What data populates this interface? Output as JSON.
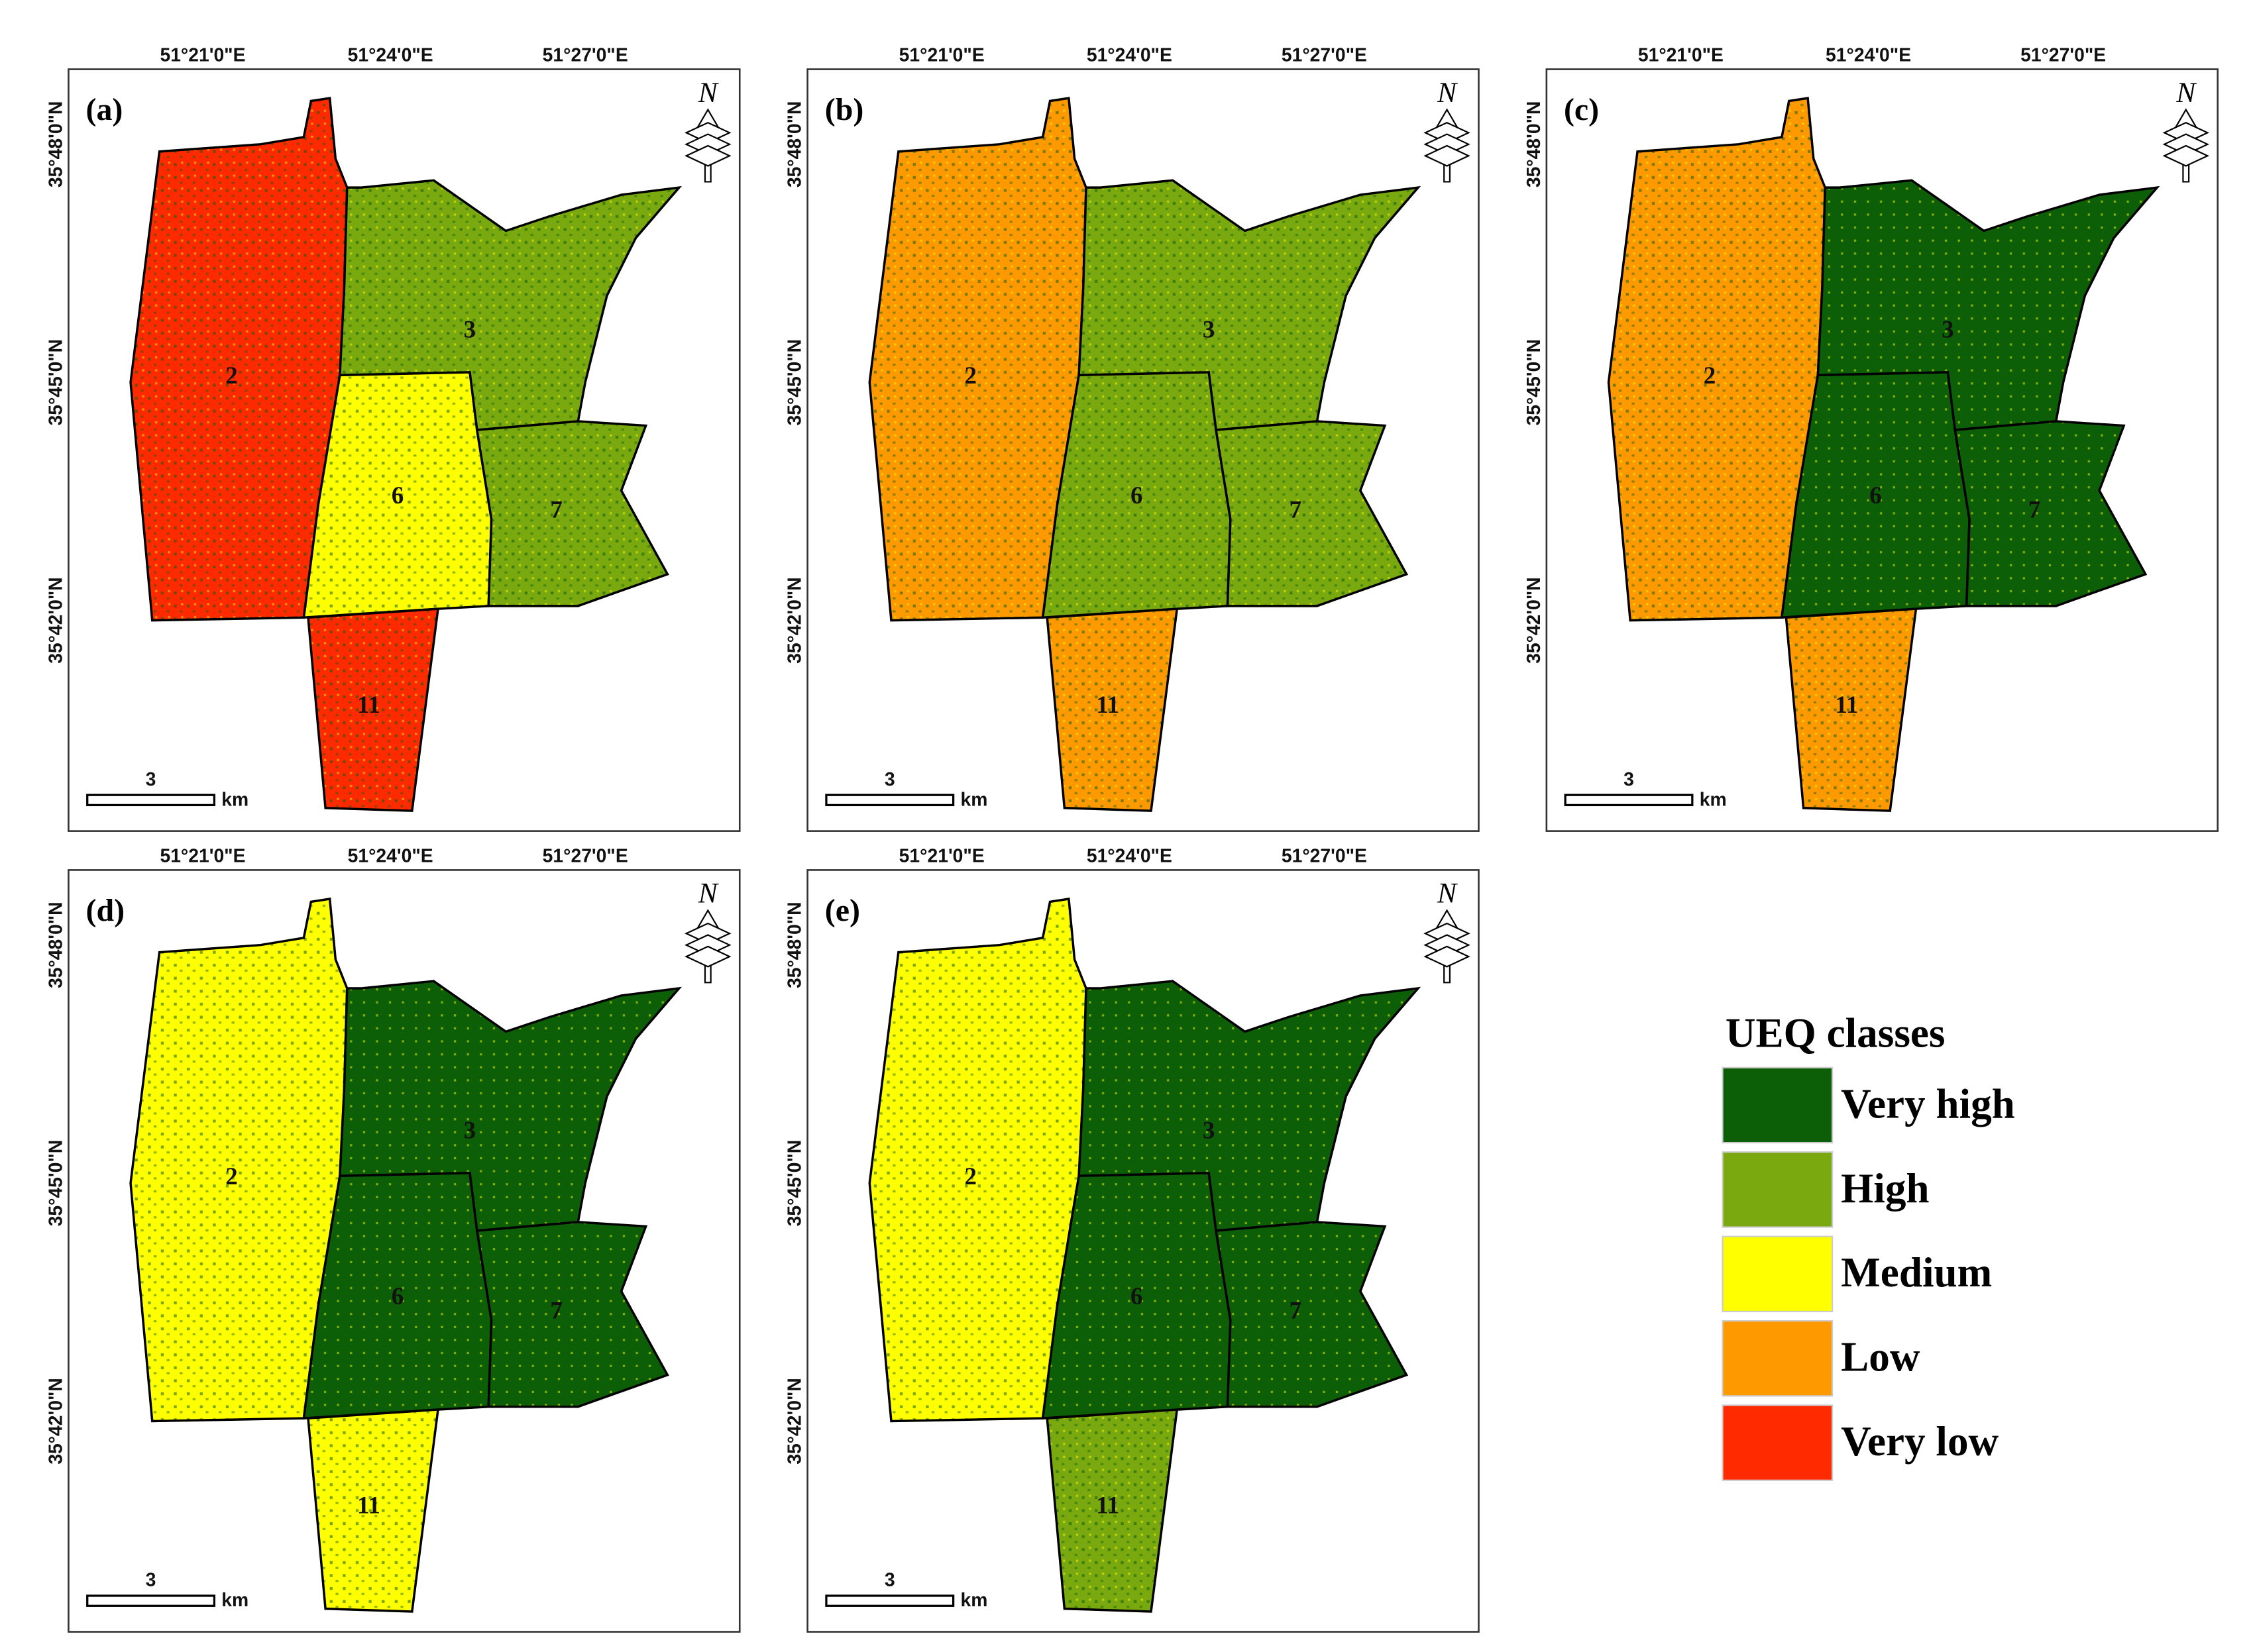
{
  "panels": [
    {
      "label": "(a)",
      "districts": [
        "2",
        "3",
        "6",
        "7",
        "11"
      ]
    },
    {
      "label": "(b)",
      "districts": [
        "2",
        "3",
        "6",
        "7",
        "11"
      ]
    },
    {
      "label": "(c)",
      "districts": [
        "2",
        "3",
        "6",
        "7",
        "11"
      ]
    },
    {
      "label": "(d)",
      "districts": [
        "2",
        "3",
        "6",
        "7",
        "11"
      ]
    },
    {
      "label": "(e)",
      "districts": [
        "2",
        "3",
        "6",
        "7",
        "11"
      ]
    }
  ],
  "lon_labels": [
    "51°21'0\"E",
    "51°24'0\"E",
    "51°27'0\"E"
  ],
  "lat_labels": [
    "35°48'0\"N",
    "35°45'0\"N",
    "35°42'0\"N"
  ],
  "scale_bar": {
    "value": "3",
    "unit": "km"
  },
  "north": "N",
  "legend": {
    "title": "UEQ classes",
    "classes": [
      {
        "name": "Very high",
        "color": "#0c5f07"
      },
      {
        "name": "High",
        "color": "#7aa90f"
      },
      {
        "name": "Medium",
        "color": "#ffff00"
      },
      {
        "name": "Low",
        "color": "#ff9900"
      },
      {
        "name": "Very low",
        "color": "#ff2a00"
      }
    ]
  }
}
